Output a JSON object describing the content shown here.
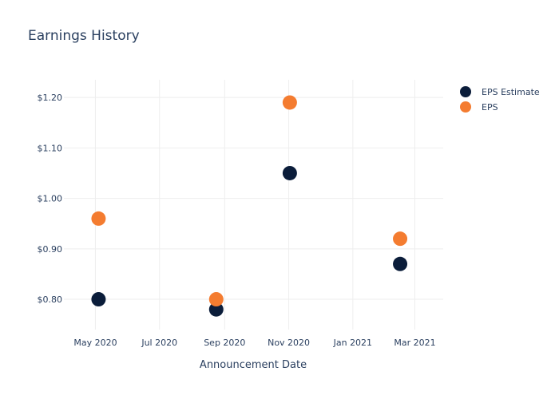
{
  "chart_data": {
    "type": "scatter",
    "title": "Earnings History",
    "xlabel": "Announcement Date",
    "ylabel": "",
    "x_type": "date",
    "xlim": [
      "2020-04-01",
      "2021-03-28"
    ],
    "ylim": [
      0.74,
      1.235
    ],
    "x_ticks": [
      {
        "value": "2020-05-01",
        "label": "May 2020"
      },
      {
        "value": "2020-07-01",
        "label": "Jul 2020"
      },
      {
        "value": "2020-09-01",
        "label": "Sep 2020"
      },
      {
        "value": "2020-11-01",
        "label": "Nov 2020"
      },
      {
        "value": "2021-01-01",
        "label": "Jan 2021"
      },
      {
        "value": "2021-03-01",
        "label": "Mar 2021"
      }
    ],
    "y_ticks": [
      {
        "value": 0.8,
        "label": "$0.80"
      },
      {
        "value": 0.9,
        "label": "$0.90"
      },
      {
        "value": 1.0,
        "label": "$1.00"
      },
      {
        "value": 1.1,
        "label": "$1.10"
      },
      {
        "value": 1.2,
        "label": "$1.20"
      }
    ],
    "grid": true,
    "legend_position": "top-right",
    "series": [
      {
        "name": "EPS Estimate",
        "color": "#0b1d3a",
        "points": [
          {
            "x": "2020-05-04",
            "y": 0.8
          },
          {
            "x": "2020-08-24",
            "y": 0.78
          },
          {
            "x": "2020-11-02",
            "y": 1.05
          },
          {
            "x": "2021-02-15",
            "y": 0.87
          }
        ]
      },
      {
        "name": "EPS",
        "color": "#f47c30",
        "points": [
          {
            "x": "2020-05-04",
            "y": 0.96
          },
          {
            "x": "2020-08-24",
            "y": 0.8
          },
          {
            "x": "2020-11-02",
            "y": 1.19
          },
          {
            "x": "2021-02-15",
            "y": 0.92
          }
        ]
      }
    ]
  }
}
